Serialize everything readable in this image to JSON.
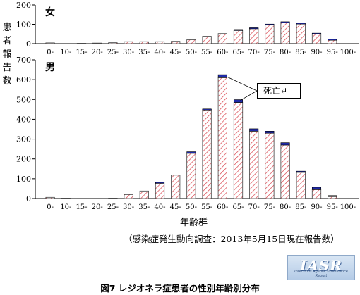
{
  "y_axis_label": [
    "患",
    "者",
    "報",
    "告",
    "数"
  ],
  "x_axis_label": "年齢群",
  "source_note": "（感染症発生動向調査：2013年5月15日現在報告数）",
  "figure_caption": "図7 レジオネラ症患者の性別年齢別分布",
  "callout_text": "死亡↵",
  "logo": {
    "text": "IASR",
    "subtext": "Infectious Agents Surveillance Report"
  },
  "colors": {
    "reported": "#d9414a",
    "death": "#1f2aa8"
  },
  "chart_data": [
    {
      "type": "bar",
      "panel_label": "女",
      "categories": [
        "0-",
        "10-",
        "15-",
        "20-",
        "25-",
        "30-",
        "35-",
        "40-",
        "45-",
        "50-",
        "55-",
        "60-",
        "65-",
        "70-",
        "75-",
        "80-",
        "85-",
        "90-",
        "95-",
        "100-"
      ],
      "series": [
        {
          "name": "報告数",
          "values": [
            4,
            0,
            2,
            3,
            5,
            10,
            10,
            10,
            12,
            20,
            38,
            52,
            70,
            80,
            96,
            108,
            102,
            52,
            20,
            0
          ]
        },
        {
          "name": "死亡",
          "values": [
            0,
            0,
            0,
            0,
            0,
            0,
            0,
            0,
            0,
            0,
            0,
            0,
            3,
            2,
            5,
            5,
            5,
            2,
            3,
            0
          ]
        }
      ],
      "ylim": [
        0,
        200
      ],
      "yticks": [
        0,
        100,
        200
      ],
      "xlabel": "",
      "ylabel": ""
    },
    {
      "type": "bar",
      "panel_label": "男",
      "categories": [
        "0-",
        "10-",
        "15-",
        "20-",
        "25-",
        "30-",
        "35-",
        "40-",
        "45-",
        "50-",
        "55-",
        "60-",
        "65-",
        "70-",
        "75-",
        "80-",
        "85-",
        "90-",
        "95-",
        "100-"
      ],
      "series": [
        {
          "name": "報告数",
          "values": [
            6,
            2,
            1,
            1,
            2,
            20,
            38,
            80,
            118,
            228,
            450,
            610,
            485,
            340,
            330,
            270,
            132,
            45,
            13,
            0
          ]
        },
        {
          "name": "死亡",
          "values": [
            0,
            0,
            0,
            0,
            0,
            0,
            0,
            2,
            0,
            8,
            2,
            15,
            14,
            12,
            10,
            12,
            6,
            12,
            2,
            0
          ]
        }
      ],
      "ylim": [
        0,
        700
      ],
      "yticks": [
        0,
        100,
        200,
        300,
        400,
        500,
        600,
        700
      ],
      "xlabel": "年齢群",
      "ylabel": "患者報告数"
    }
  ]
}
